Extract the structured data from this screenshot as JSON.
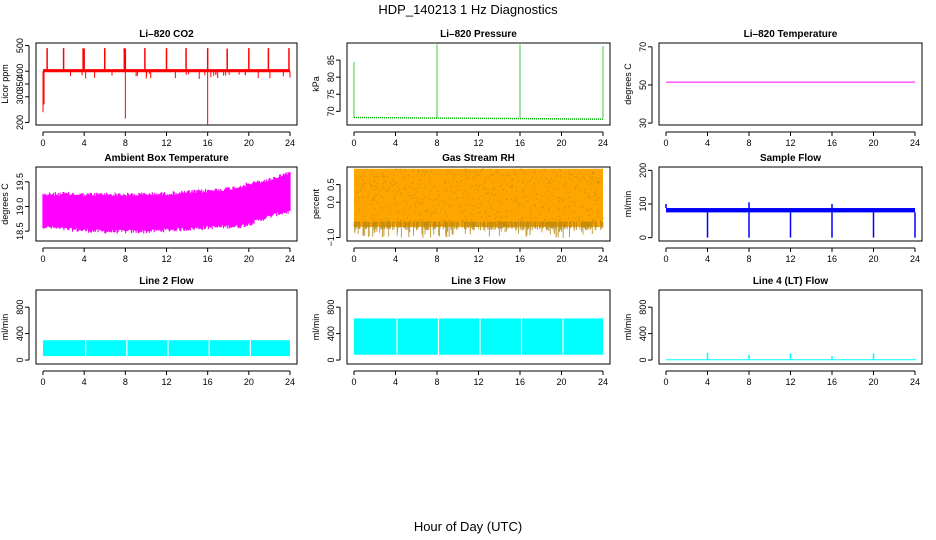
{
  "title": "HDP_140213  1 Hz Diagnostics",
  "xlabel": "Hour of Day (UTC)",
  "colors": {
    "co2": "#ff0000",
    "pressure": "#00bb00",
    "temperature": "#ff00ff",
    "box_temperature": "#ff00ff",
    "rh_fill": "#ffa500",
    "rh_dots": "#b8860b",
    "sample_flow": "#0000ff",
    "line_flow": "#00ffff",
    "axis": "#000000"
  },
  "chart_data": [
    {
      "id": "co2",
      "type": "line",
      "title": "Li–820 CO2",
      "ylabel": "Licor ppm",
      "xlim": [
        0,
        24
      ],
      "ylim": [
        190,
        510
      ],
      "xticks": [
        0,
        4,
        8,
        12,
        16,
        20,
        24
      ],
      "xticklabels": [
        "0",
        "4",
        "8",
        "12",
        "16",
        "20",
        "24"
      ],
      "yticks": [
        200,
        300,
        350,
        400,
        500
      ],
      "yticklabels": [
        "200",
        "300",
        "350",
        "400",
        "500"
      ],
      "series": {
        "baseline": 400,
        "noise": 5,
        "spikes_up": [
          [
            0.4,
            490
          ],
          [
            2.0,
            490
          ],
          [
            3.9,
            490
          ],
          [
            4.0,
            488
          ],
          [
            6.0,
            490
          ],
          [
            7.9,
            490
          ],
          [
            8.0,
            488
          ],
          [
            9.9,
            490
          ],
          [
            12.0,
            490
          ],
          [
            13.9,
            490
          ],
          [
            16.0,
            490
          ],
          [
            17.9,
            488
          ],
          [
            20.0,
            490
          ],
          [
            21.9,
            490
          ],
          [
            23.9,
            490
          ]
        ],
        "spikes_down": [
          [
            0.0,
            240
          ],
          [
            0.1,
            270
          ],
          [
            8.0,
            215
          ],
          [
            16.0,
            190
          ],
          [
            24.0,
            375
          ]
        ]
      }
    },
    {
      "id": "pressure",
      "type": "line",
      "title": "Li–820 Pressure",
      "ylabel": "kPa",
      "xlim": [
        0,
        24
      ],
      "ylim": [
        66,
        90
      ],
      "xticks": [
        0,
        4,
        8,
        12,
        16,
        20,
        24
      ],
      "xticklabels": [
        "0",
        "4",
        "8",
        "12",
        "16",
        "20",
        "24"
      ],
      "yticks": [
        70,
        75,
        80,
        85
      ],
      "yticklabels": [
        "70",
        "75",
        "80",
        "85"
      ],
      "series": {
        "baseline_start": 68.2,
        "baseline_end": 67.7,
        "spikes_up": [
          [
            0.0,
            84.5
          ],
          [
            8.0,
            89.5
          ],
          [
            16.0,
            89.5
          ],
          [
            24.0,
            89.0
          ]
        ]
      }
    },
    {
      "id": "temperature",
      "type": "line",
      "title": "Li–820 Temperature",
      "ylabel": "degrees C",
      "xlim": [
        0,
        24
      ],
      "ylim": [
        29,
        72
      ],
      "xticks": [
        0,
        4,
        8,
        12,
        16,
        20,
        24
      ],
      "xticklabels": [
        "0",
        "4",
        "8",
        "12",
        "16",
        "20",
        "24"
      ],
      "yticks": [
        30,
        50,
        70
      ],
      "yticklabels": [
        "30",
        "50",
        "70"
      ],
      "series": {
        "value": 51.5
      }
    },
    {
      "id": "box_temperature",
      "type": "area",
      "title": "Ambient Box Temperature",
      "ylabel": "degrees C",
      "xlim": [
        0,
        24
      ],
      "ylim": [
        18.3,
        19.8
      ],
      "xticks": [
        0,
        4,
        8,
        12,
        16,
        20,
        24
      ],
      "xticklabels": [
        "0",
        "4",
        "8",
        "12",
        "16",
        "20",
        "24"
      ],
      "yticks": [
        18.5,
        19.0,
        19.5
      ],
      "yticklabels": [
        "18.5",
        "19.0",
        "19.5"
      ],
      "series": {
        "x": [
          0,
          2,
          4,
          6,
          8,
          10,
          12,
          14,
          16,
          18,
          19,
          20,
          21,
          22,
          23,
          24
        ],
        "upper": [
          19.28,
          19.3,
          19.28,
          19.29,
          19.28,
          19.29,
          19.3,
          19.33,
          19.36,
          19.4,
          19.44,
          19.5,
          19.54,
          19.58,
          19.66,
          19.74
        ],
        "lower": [
          18.55,
          18.5,
          18.47,
          18.45,
          18.45,
          18.45,
          18.48,
          18.5,
          18.53,
          18.55,
          18.55,
          18.6,
          18.68,
          18.75,
          18.82,
          18.85
        ]
      }
    },
    {
      "id": "rh",
      "type": "area",
      "title": "Gas Stream RH",
      "ylabel": "percent",
      "xlim": [
        0,
        24
      ],
      "ylim": [
        -1.1,
        1.0
      ],
      "xticks": [
        0,
        4,
        8,
        12,
        16,
        20,
        24
      ],
      "xticklabels": [
        "0",
        "4",
        "8",
        "12",
        "16",
        "20",
        "24"
      ],
      "yticks": [
        -1.0,
        0.0,
        0.5
      ],
      "yticklabels": [
        "−1.0",
        "0.0",
        "0.5"
      ],
      "series": {
        "upper": 0.95,
        "lower": -0.7,
        "extreme_lower": -1.02
      }
    },
    {
      "id": "sample_flow",
      "type": "line",
      "title": "Sample Flow",
      "ylabel": "ml/min",
      "xlim": [
        0,
        24
      ],
      "ylim": [
        -10,
        210
      ],
      "xticks": [
        0,
        4,
        8,
        12,
        16,
        20,
        24
      ],
      "xticklabels": [
        "0",
        "4",
        "8",
        "12",
        "16",
        "20",
        "24"
      ],
      "yticks": [
        0,
        100,
        200
      ],
      "yticklabels": [
        "0",
        "100",
        "200"
      ],
      "series": {
        "band": [
          75,
          88
        ],
        "dips": [
          4,
          8,
          12,
          16,
          20,
          24
        ],
        "dip_value": 0,
        "peaks": [
          [
            0.0,
            100
          ],
          [
            8.0,
            105
          ],
          [
            16.0,
            100
          ]
        ]
      }
    },
    {
      "id": "line2",
      "type": "area",
      "title": "Line 2 Flow",
      "ylabel": "ml/min",
      "xlim": [
        0,
        24
      ],
      "ylim": [
        -60,
        1060
      ],
      "xticks": [
        0,
        4,
        8,
        12,
        16,
        20,
        24
      ],
      "xticklabels": [
        "0",
        "4",
        "8",
        "12",
        "16",
        "20",
        "24"
      ],
      "yticks": [
        0,
        400,
        800
      ],
      "yticklabels": [
        "0",
        "400",
        "800"
      ],
      "series": {
        "upper": 300,
        "lower": 60,
        "gaps": [
          4,
          8,
          12,
          16,
          20,
          24
        ]
      }
    },
    {
      "id": "line3",
      "type": "area",
      "title": "Line 3 Flow",
      "ylabel": "ml/min",
      "xlim": [
        0,
        24
      ],
      "ylim": [
        -60,
        1060
      ],
      "xticks": [
        0,
        4,
        8,
        12,
        16,
        20,
        24
      ],
      "xticklabels": [
        "0",
        "4",
        "8",
        "12",
        "16",
        "20",
        "24"
      ],
      "yticks": [
        0,
        400,
        800
      ],
      "yticklabels": [
        "0",
        "400",
        "800"
      ],
      "series": {
        "upper": 630,
        "lower": 80,
        "gaps": [
          4,
          8,
          12,
          16,
          20,
          24
        ]
      }
    },
    {
      "id": "line4",
      "type": "line",
      "title": "Line 4 (LT) Flow",
      "ylabel": "ml/min",
      "xlim": [
        0,
        24
      ],
      "ylim": [
        -60,
        1060
      ],
      "xticks": [
        0,
        4,
        8,
        12,
        16,
        20,
        24
      ],
      "xticklabels": [
        "0",
        "4",
        "8",
        "12",
        "16",
        "20",
        "24"
      ],
      "yticks": [
        0,
        400,
        800
      ],
      "yticklabels": [
        "0",
        "400",
        "800"
      ],
      "series": {
        "baseline": 5,
        "spikes": [
          [
            4,
            110
          ],
          [
            8,
            80
          ],
          [
            12,
            100
          ],
          [
            16,
            60
          ],
          [
            20,
            100
          ],
          [
            24,
            20
          ]
        ]
      }
    }
  ]
}
